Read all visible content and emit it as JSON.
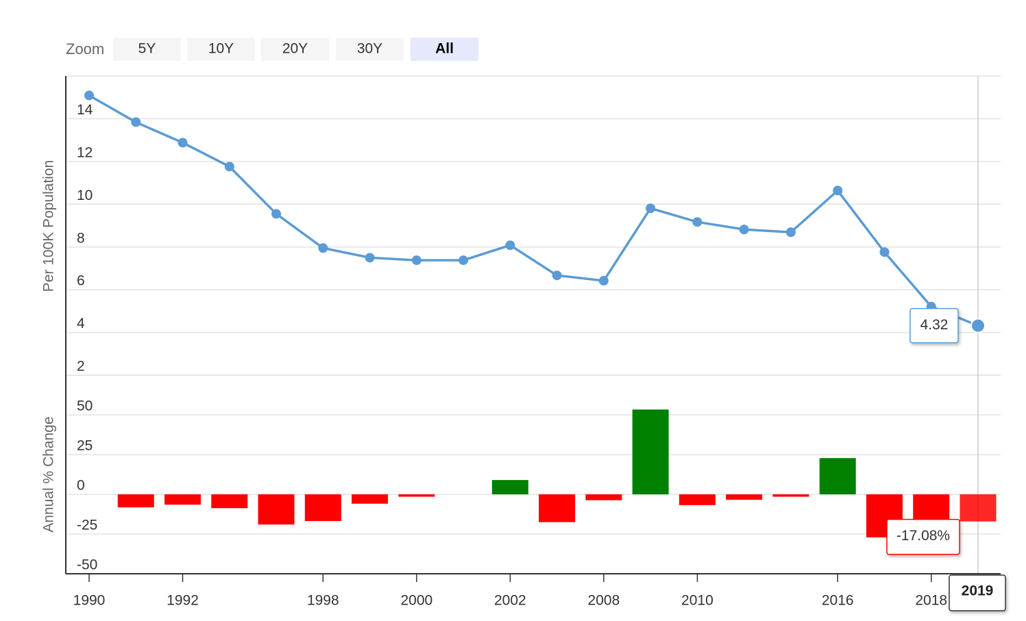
{
  "zoom": {
    "label": "Zoom",
    "buttons": [
      "5Y",
      "10Y",
      "20Y",
      "30Y",
      "All"
    ],
    "active": 4
  },
  "hover_index": 19,
  "chart_data": [
    {
      "type": "line",
      "y_label": "Per 100K Population",
      "color": "#5b9bd5",
      "values": [
        15.09,
        13.84,
        12.88,
        11.76,
        9.55,
        7.95,
        7.5,
        7.38,
        7.38,
        8.08,
        6.67,
        6.42,
        9.81,
        9.17,
        8.82,
        8.69,
        10.64,
        7.76,
        5.21,
        4.32
      ],
      "ylim": [
        2,
        16
      ],
      "yticks": [
        2,
        4,
        6,
        8,
        10,
        12,
        14
      ],
      "grid": true
    },
    {
      "type": "bar",
      "y_label": "Annual % Change",
      "categories": [
        "1990",
        null,
        "1992",
        null,
        null,
        "1998",
        null,
        "2000",
        null,
        "2002",
        null,
        "2008",
        null,
        "2010",
        null,
        null,
        "2016",
        null,
        "2018",
        "2019"
      ],
      "values": [
        null,
        -8.2,
        -6.5,
        -8.7,
        -19,
        -16.8,
        -5.9,
        -1.5,
        0,
        9,
        -17.5,
        -3.7,
        53.4,
        -6.8,
        -3.4,
        -1.5,
        22.8,
        -27.1,
        -33,
        -17.08
      ],
      "value_labels": [
        null,
        null,
        null,
        null,
        null,
        null,
        null,
        null,
        null,
        null,
        null,
        null,
        null,
        null,
        null,
        null,
        null,
        null,
        null,
        "-17.08%"
      ],
      "positive_color": "#008000",
      "negative_color": "#ff0000",
      "ylim": [
        -50,
        75
      ],
      "yticks": [
        -50,
        -25,
        0,
        25,
        50
      ],
      "grid": true
    }
  ]
}
